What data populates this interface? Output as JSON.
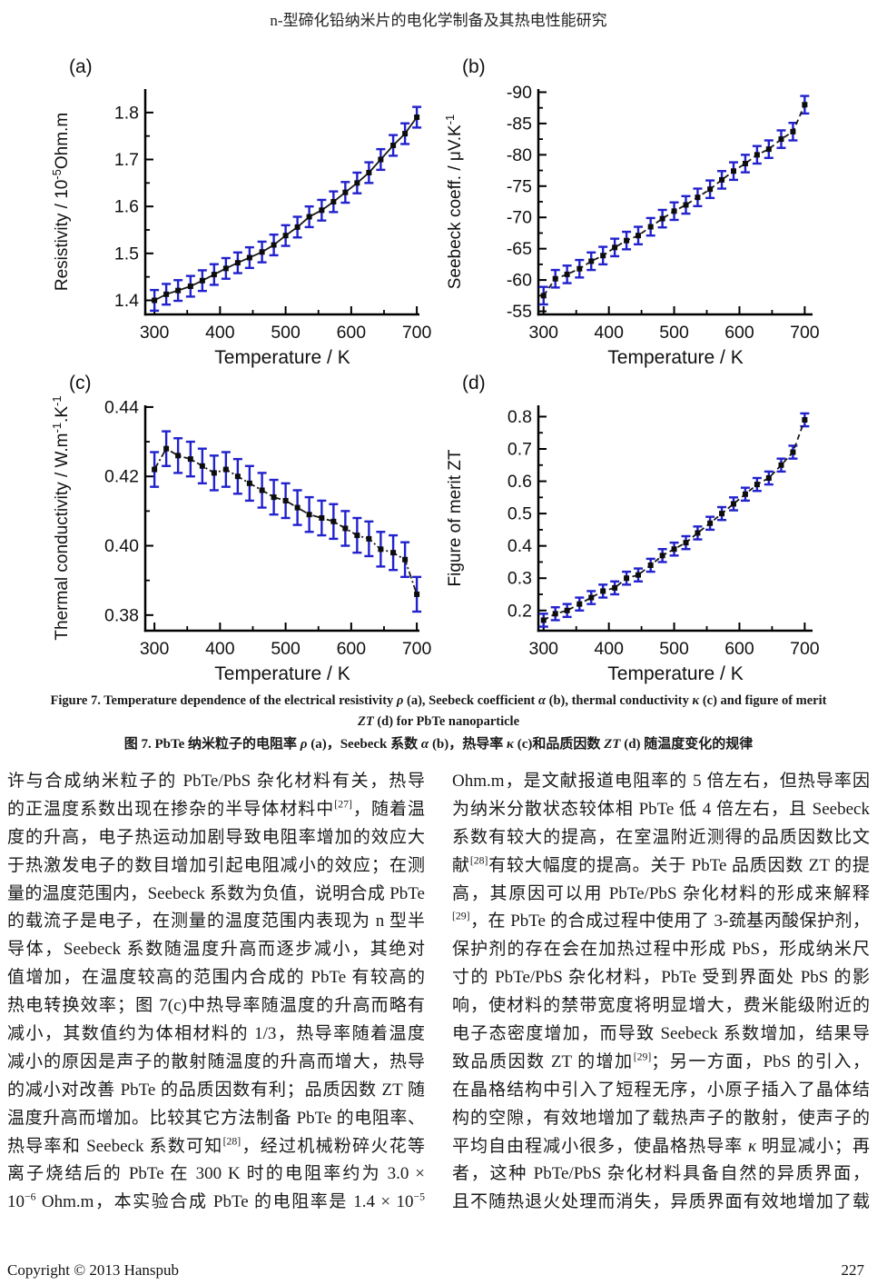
{
  "page": {
    "header_title": "n-型碲化铅纳米片的电化学制备及其热电性能研究",
    "footer": {
      "copyright": "Copyright © 2013 Hanspub",
      "page_number": "227"
    }
  },
  "figure": {
    "caption_en_line1": "Figure 7. Temperature dependence of the electrical resistivity *{ρ} (a), Seebeck coefficient *{α} (b), thermal conductivity *{κ} (c) and figure of merit",
    "caption_en_line2": "*{ZT} (d) for PbTe nanoparticle",
    "caption_zh": "图 7. PbTe 纳米粒子的电阻率 *{ρ} (a)，Seebeck 系数 *{α} (b)，热导率 *{κ} (c)和品质因数 *{ZT} (d) 随温度变化的规律"
  },
  "colors": {
    "error_bar": "#2121cd",
    "marker": "#0d0d0d",
    "line": "#1a1a1a",
    "axis": "#000000"
  },
  "chart_data": [
    {
      "type": "line",
      "panel": "(a)",
      "xlabel": "Temperature / K",
      "ylabel": "Resistivity / 10^{-5}Ohm.m",
      "x": [
        300,
        318,
        336,
        355,
        373,
        391,
        409,
        427,
        445,
        464,
        482,
        500,
        518,
        536,
        555,
        573,
        591,
        609,
        627,
        645,
        664,
        682,
        700
      ],
      "values": [
        1.4,
        1.413,
        1.421,
        1.43,
        1.442,
        1.455,
        1.468,
        1.48,
        1.491,
        1.503,
        1.518,
        1.538,
        1.556,
        1.578,
        1.592,
        1.61,
        1.63,
        1.65,
        1.672,
        1.7,
        1.73,
        1.755,
        1.79
      ],
      "error": 0.022,
      "xlim": [
        286,
        704
      ],
      "ylim": [
        1.37,
        1.85
      ],
      "xticks": [
        300,
        400,
        500,
        600,
        700
      ],
      "xtick_labels": [
        "300",
        "400",
        "500",
        "600",
        "700"
      ],
      "yticks": [
        1.4,
        1.5,
        1.6,
        1.7,
        1.8
      ],
      "ytick_labels": [
        "1.4",
        "1.5",
        "1.6",
        "1.7",
        "1.8"
      ],
      "xminor": [
        350,
        450,
        550,
        650
      ],
      "yminor": [
        1.45,
        1.55,
        1.65,
        1.75
      ],
      "dash": ""
    },
    {
      "type": "line",
      "panel": "(b)",
      "xlabel": "Temperature / K",
      "ylabel": "Seebeck coeff. / μV.K^{-1}",
      "x": [
        300,
        318,
        336,
        355,
        373,
        391,
        409,
        427,
        445,
        464,
        482,
        500,
        518,
        536,
        555,
        573,
        591,
        609,
        627,
        645,
        664,
        682,
        700
      ],
      "values": [
        -57.5,
        -60.2,
        -60.9,
        -61.8,
        -63.0,
        -63.9,
        -65.2,
        -66.3,
        -67.1,
        -68.5,
        -69.8,
        -71.0,
        -72.0,
        -73.2,
        -74.5,
        -76.0,
        -77.4,
        -78.6,
        -80.0,
        -80.9,
        -82.5,
        -83.7,
        -88.0
      ],
      "error": 1.4,
      "xlim": [
        292,
        712
      ],
      "ylim": [
        -54.5,
        -90.5
      ],
      "xticks": [
        300,
        400,
        500,
        600,
        700
      ],
      "xtick_labels": [
        "300",
        "400",
        "500",
        "600",
        "700"
      ],
      "yticks": [
        -55,
        -60,
        -65,
        -70,
        -75,
        -80,
        -85,
        -90
      ],
      "ytick_labels": [
        "-55",
        "-60",
        "-65",
        "-70",
        "-75",
        "-80",
        "-85",
        "-90"
      ],
      "xminor": [
        350,
        450,
        550,
        650
      ],
      "yminor": [
        -57.5,
        -62.5,
        -67.5,
        -72.5,
        -77.5,
        -82.5,
        -87.5
      ],
      "dash": "6,4"
    },
    {
      "type": "line",
      "panel": "(c)",
      "xlabel": "Temperature / K",
      "ylabel": "Thermal conductivity / W.m^{-1}.K^{-1}",
      "x": [
        300,
        318,
        336,
        355,
        373,
        391,
        409,
        427,
        445,
        464,
        482,
        500,
        518,
        536,
        555,
        573,
        591,
        609,
        627,
        645,
        664,
        682,
        700
      ],
      "values": [
        0.422,
        0.428,
        0.426,
        0.425,
        0.423,
        0.421,
        0.422,
        0.42,
        0.418,
        0.416,
        0.414,
        0.413,
        0.411,
        0.409,
        0.408,
        0.407,
        0.405,
        0.403,
        0.402,
        0.399,
        0.398,
        0.396,
        0.386
      ],
      "error": 0.005,
      "xlim": [
        286,
        704
      ],
      "ylim": [
        0.3755,
        0.4405
      ],
      "xticks": [
        300,
        400,
        500,
        600,
        700
      ],
      "xtick_labels": [
        "300",
        "400",
        "500",
        "600",
        "700"
      ],
      "yticks": [
        0.38,
        0.4,
        0.42,
        0.44
      ],
      "ytick_labels": [
        "0.38",
        "0.40",
        "0.42",
        "0.44"
      ],
      "xminor": [
        350,
        450,
        550,
        650
      ],
      "yminor": [
        0.39,
        0.41,
        0.43
      ],
      "dash": "8,3,2,3"
    },
    {
      "type": "line",
      "panel": "(d)",
      "xlabel": "Temperature / K",
      "ylabel": "Figure of merit ZT",
      "x": [
        300,
        318,
        336,
        355,
        373,
        391,
        409,
        427,
        445,
        464,
        482,
        500,
        518,
        536,
        555,
        573,
        591,
        609,
        627,
        645,
        664,
        682,
        700
      ],
      "values": [
        0.17,
        0.19,
        0.2,
        0.22,
        0.24,
        0.26,
        0.27,
        0.3,
        0.31,
        0.34,
        0.37,
        0.39,
        0.41,
        0.44,
        0.47,
        0.5,
        0.53,
        0.56,
        0.59,
        0.61,
        0.65,
        0.69,
        0.79
      ],
      "error": 0.02,
      "xlim": [
        292,
        712
      ],
      "ylim": [
        0.1375,
        0.835
      ],
      "xticks": [
        300,
        400,
        500,
        600,
        700
      ],
      "xtick_labels": [
        "300",
        "400",
        "500",
        "600",
        "700"
      ],
      "yticks": [
        0.2,
        0.3,
        0.4,
        0.5,
        0.6,
        0.7,
        0.8
      ],
      "ytick_labels": [
        "0.2",
        "0.3",
        "0.4",
        "0.5",
        "0.6",
        "0.7",
        "0.8"
      ],
      "xminor": [
        350,
        450,
        550,
        650
      ],
      "yminor": [
        0.15,
        0.25,
        0.35,
        0.45,
        0.55,
        0.65,
        0.75
      ],
      "dash": "6,4"
    }
  ],
  "body": {
    "left_column": [
      "许与合成纳米粒子的 PbTe/PbS 杂化材料有关，热导",
      "的正温度系数出现在掺杂的半导体材料中^{[27]}，随着温",
      "度的升高，电子热运动加剧导致电阻率增加的效应大",
      "于热激发电子的数目增加引起电阻减小的效应；在测",
      "量的温度范围内，Seebeck 系数为负值，说明合成 PbTe",
      "的载流子是电子，在测量的温度范围内表现为 n 型半",
      "导体，Seebeck 系数随温度升高而逐步减小，其绝对",
      "值增加，在温度较高的范围内合成的 PbTe 有较高的",
      "热电转换效率；图 7(c)中热导率随温度的升高而略有",
      "减小，其数值约为体相材料的 1/3，热导率随着温度",
      "减小的原因是声子的散射随温度的升高而增大，热导",
      "的减小对改善 PbTe 的品质因数有利；品质因数 ZT 随",
      "温度升高而增加。比较其它方法制备 PbTe 的电阻率、",
      "热导率和 Seebeck 系数可知^{[28]}，经过机械粉碎火花等",
      "离子烧结后的 PbTe 在 300 K 时的电阻率约为 3.0 ×",
      "10^{−6} Ohm.m，本实验合成 PbTe 的电阻率是 1.4 × 10^{−5}"
    ],
    "right_column": [
      "Ohm.m，是文献报道电阻率的 5 倍左右，但热导率因",
      "为纳米分散状态较体相 PbTe 低 4 倍左右，且 Seebeck",
      "系数有较大的提高，在室温附近测得的品质因数比文",
      "献^{[28]}有较大幅度的提高。关于 PbTe 品质因数 ZT 的提",
      "高，其原因可以用 PbTe/PbS 杂化材料的形成来解释",
      "^{[29]}，在 PbTe 的合成过程中使用了 3-巯基丙酸保护剂，",
      "保护剂的存在会在加热过程中形成 PbS，形成纳米尺",
      "寸的 PbTe/PbS 杂化材料，PbTe 受到界面处 PbS 的影",
      "响，使材料的禁带宽度将明显增大，费米能级附近的",
      "电子态密度增加，而导致 Seebeck 系数增加，结果导",
      "致品质因数 ZT 的增加^{[29]}；另一方面，PbS 的引入，",
      "在晶格结构中引入了短程无序，小原子插入了晶体结",
      "构的空隙，有效地增加了载热声子的散射，使声子的",
      "平均自由程减小很多，使晶格热导率 *{κ} 明显减小；再",
      "者，这种 PbTe/PbS 杂化材料具备自然的异质界面，",
      "且不随热退火处理而消失，异质界面有效地增加了载"
    ]
  }
}
